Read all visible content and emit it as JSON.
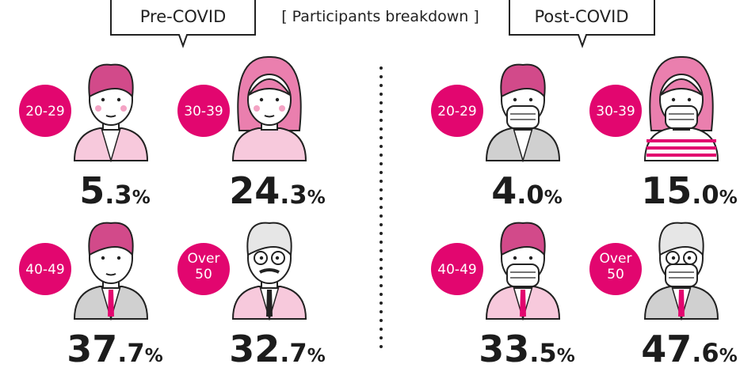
{
  "header": {
    "pre": "Pre-COVID",
    "subtitle": "[ Participants breakdown ]",
    "post": "Post-COVID"
  },
  "groups": [
    {
      "items": [
        {
          "age": "20-29",
          "share": "5.3%"
        },
        {
          "age": "30-39",
          "share": "24.3%"
        },
        {
          "age": "40-49",
          "share": "37.7%"
        },
        {
          "age": "Over 50",
          "share": "32.7%"
        }
      ]
    },
    {
      "items": [
        {
          "age": "20-29",
          "share": "4.0%"
        },
        {
          "age": "30-39",
          "share": "15.0%"
        },
        {
          "age": "40-49",
          "share": "33.5%"
        },
        {
          "age": "Over 50",
          "share": "47.6%"
        }
      ]
    }
  ]
}
